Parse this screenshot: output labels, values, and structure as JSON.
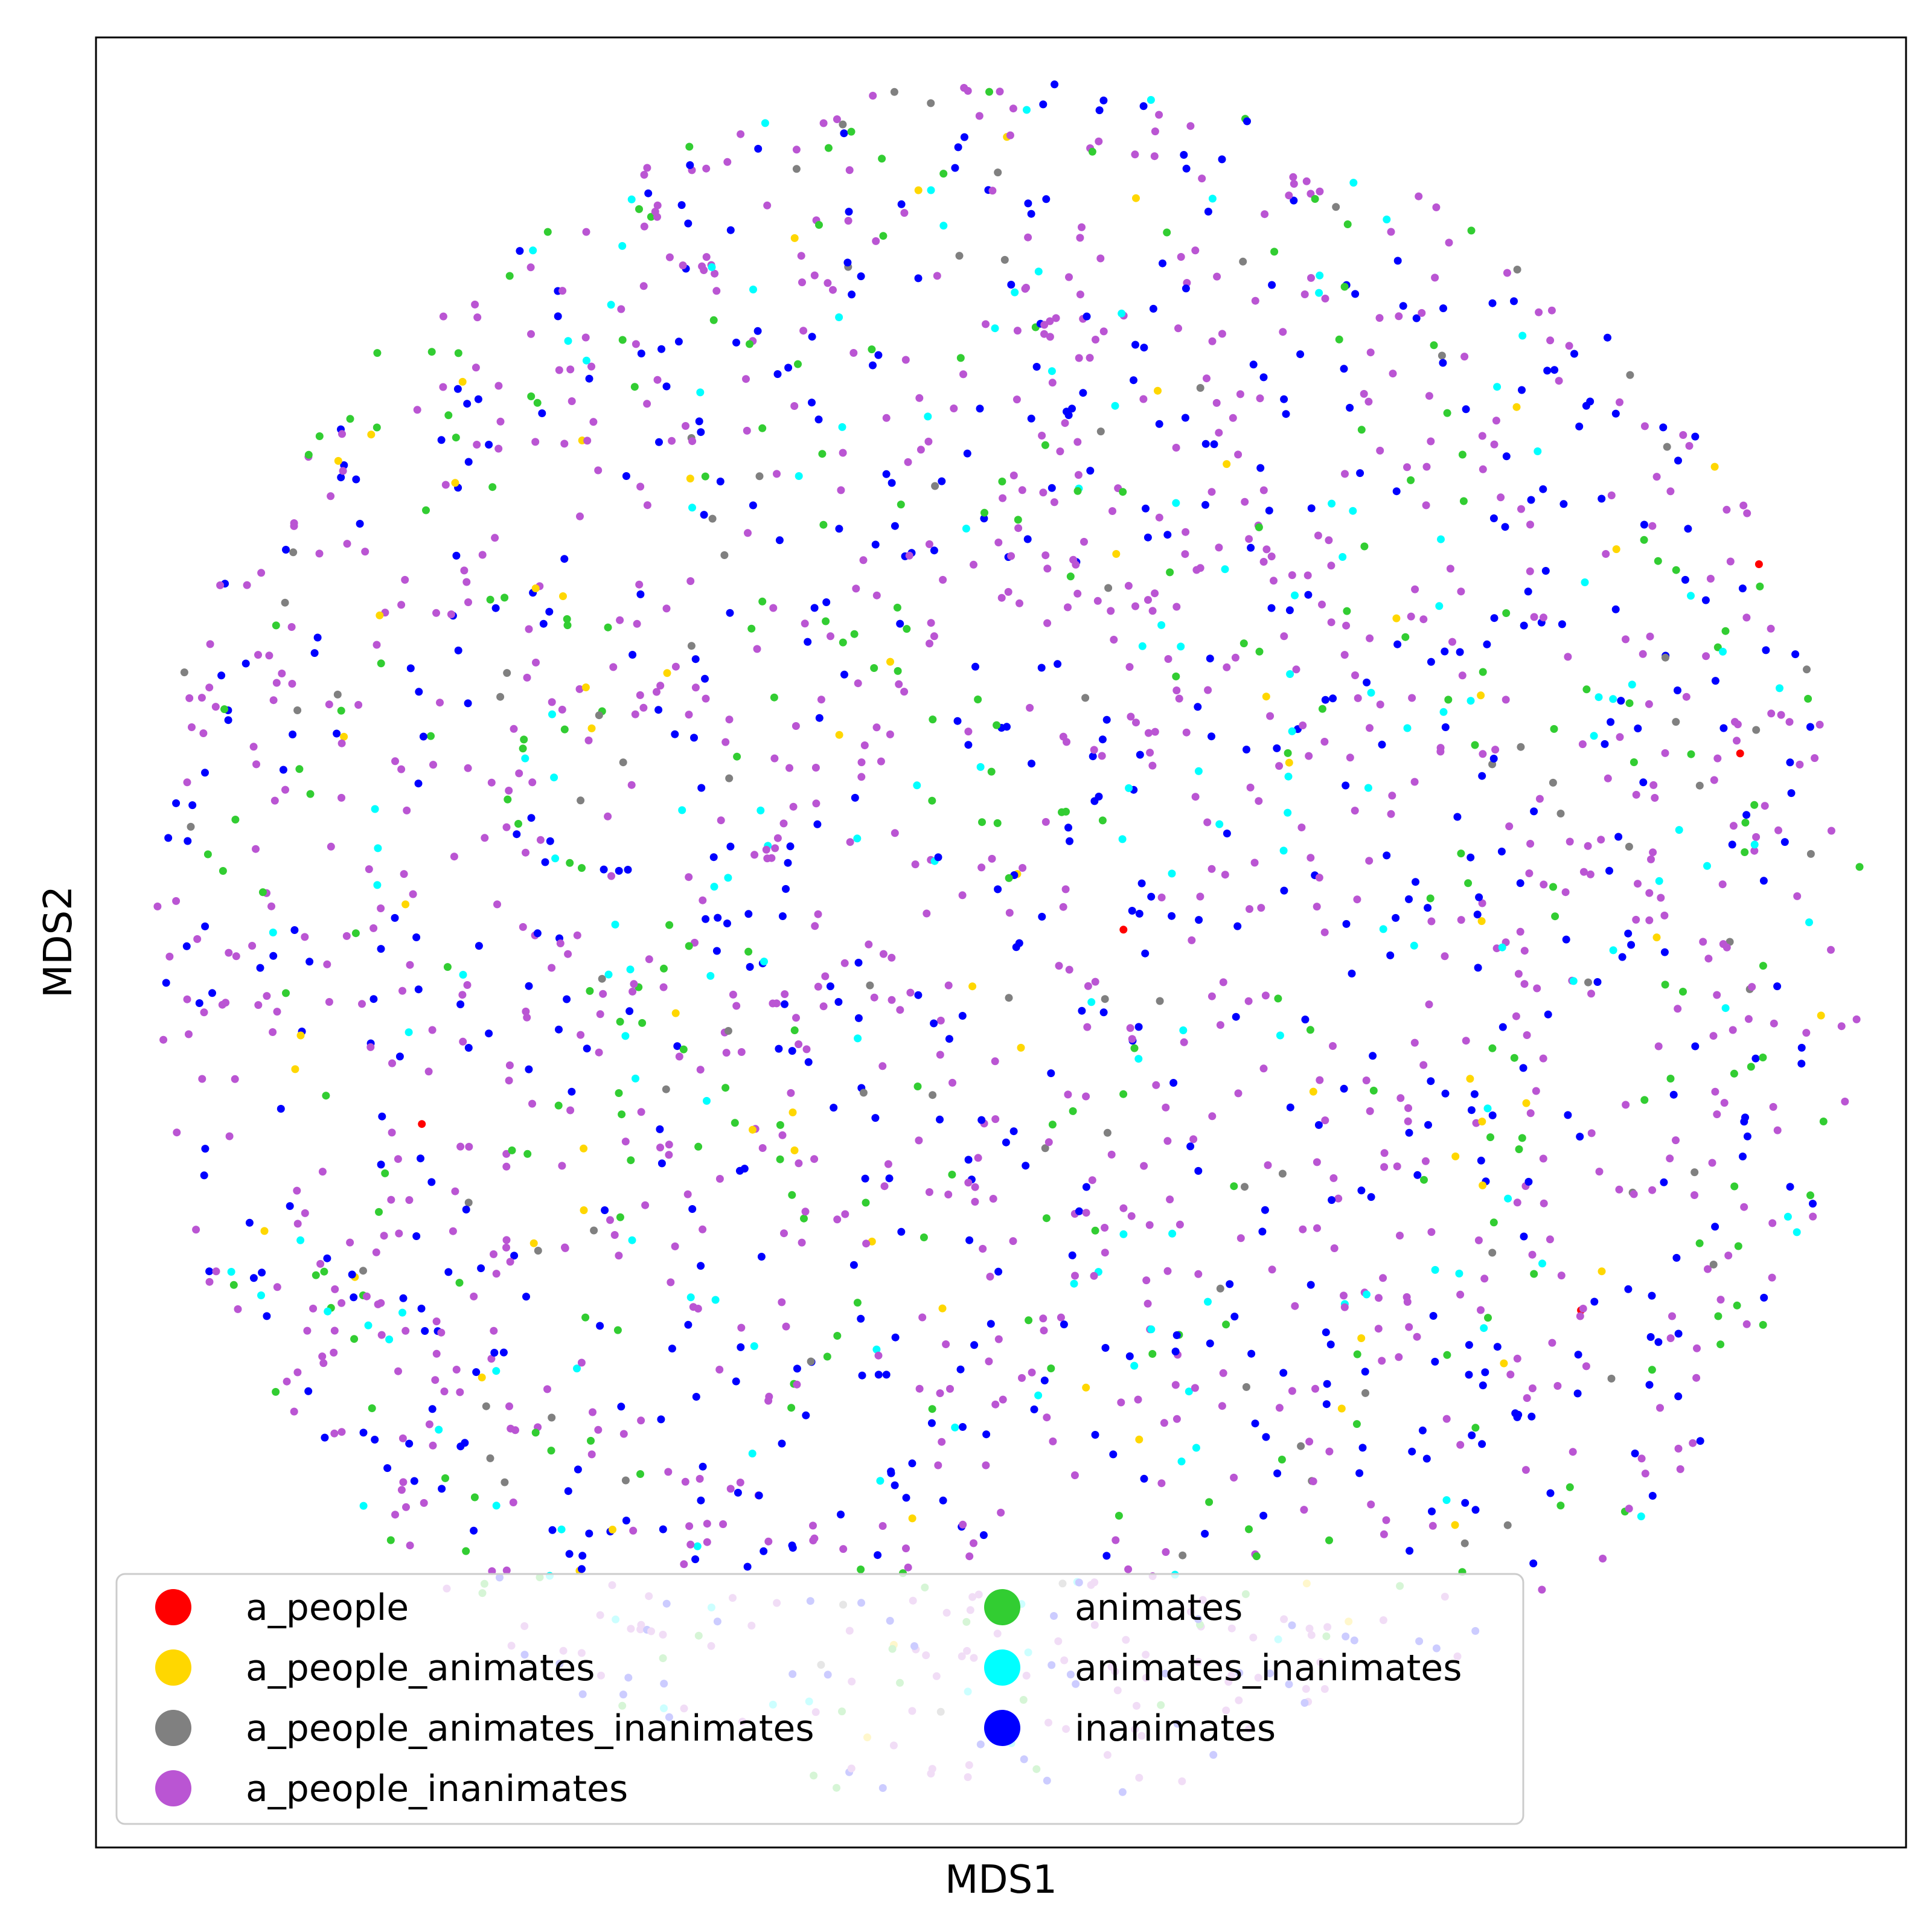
{
  "chart_data": {
    "type": "scatter",
    "title": "",
    "xlabel": "MDS1",
    "ylabel": "MDS2",
    "xlim": [
      -1.05,
      1.05
    ],
    "ylim": [
      -1.05,
      1.05
    ],
    "grid": false,
    "ticks_shown": false,
    "legend_placement": "lower-left",
    "legend_columns": 2,
    "point_distribution": "disk of radius 1 centered at (0, 0)",
    "series": [
      {
        "name": "a_people",
        "color": "#ff0000",
        "count": 5
      },
      {
        "name": "a_people_animates",
        "color": "#ffd700",
        "count": 70
      },
      {
        "name": "a_people_animates_inanimates",
        "color": "#808080",
        "count": 90
      },
      {
        "name": "a_people_inanimates",
        "color": "#ba55d3",
        "count": 1100
      },
      {
        "name": "animates",
        "color": "#32cd32",
        "count": 280
      },
      {
        "name": "animates_inanimates",
        "color": "#00ffff",
        "count": 170
      },
      {
        "name": "inanimates",
        "color": "#0000ff",
        "count": 650
      }
    ]
  }
}
